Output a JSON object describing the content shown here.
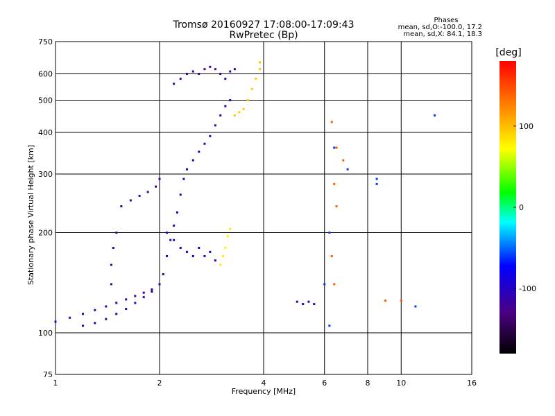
{
  "chart_data": {
    "type": "scatter",
    "title": "Tromsø 20160927 17:08:00-17:09:43",
    "subtitle": "RwPretec (Bp)",
    "xlabel": "Frequency [MHz]",
    "ylabel": "Stationary phase Virtual Height [km]",
    "xscale": "log",
    "yscale": "log",
    "xlim": [
      1,
      16
    ],
    "ylim": [
      75,
      750
    ],
    "xticks": [
      1,
      2,
      4,
      6,
      8,
      10,
      16
    ],
    "yticks": [
      75,
      100,
      200,
      300,
      400,
      500,
      600,
      750
    ],
    "grid": true,
    "phase_stats": {
      "title": "Phases",
      "line_o": "mean, sd,O:-100.0, 17.2",
      "line_x": "mean, sd,X:  84.1, 18.3"
    },
    "colorbar": {
      "label": "[deg]",
      "range": [
        -180,
        180
      ],
      "ticks": [
        100,
        0,
        -100
      ],
      "colors": [
        "#000000",
        "#4b0082",
        "#0000ff",
        "#00ffff",
        "#00ff00",
        "#ffff00",
        "#ff8000",
        "#ff0000"
      ]
    },
    "series": [
      {
        "phase": -110,
        "points": [
          [
            1.0,
            108
          ],
          [
            1.1,
            111
          ],
          [
            1.2,
            114
          ],
          [
            1.3,
            117
          ],
          [
            1.4,
            120
          ],
          [
            1.5,
            123
          ],
          [
            1.6,
            126
          ],
          [
            1.7,
            129
          ],
          [
            1.8,
            132
          ],
          [
            1.9,
            135
          ],
          [
            2.0,
            140
          ],
          [
            2.05,
            150
          ],
          [
            2.1,
            170
          ],
          [
            2.15,
            190
          ],
          [
            2.2,
            210
          ],
          [
            2.25,
            230
          ],
          [
            2.3,
            260
          ],
          [
            2.35,
            290
          ],
          [
            2.4,
            310
          ],
          [
            2.5,
            330
          ],
          [
            2.6,
            350
          ],
          [
            2.7,
            370
          ],
          [
            2.8,
            390
          ],
          [
            2.9,
            420
          ],
          [
            3.0,
            450
          ],
          [
            3.1,
            480
          ],
          [
            3.2,
            500
          ]
        ]
      },
      {
        "phase": -110,
        "points": [
          [
            1.2,
            105
          ],
          [
            1.3,
            107
          ],
          [
            1.4,
            110
          ],
          [
            1.5,
            114
          ],
          [
            1.6,
            118
          ],
          [
            1.7,
            123
          ],
          [
            1.8,
            128
          ],
          [
            1.9,
            133
          ]
        ]
      },
      {
        "phase": -120,
        "points": [
          [
            1.45,
            140
          ],
          [
            1.45,
            160
          ],
          [
            1.47,
            180
          ],
          [
            1.5,
            200
          ],
          [
            1.55,
            240
          ],
          [
            1.65,
            250
          ],
          [
            1.75,
            258
          ],
          [
            1.85,
            265
          ],
          [
            1.95,
            275
          ],
          [
            2.0,
            290
          ]
        ]
      },
      {
        "phase": -100,
        "points": [
          [
            2.1,
            200
          ],
          [
            2.2,
            190
          ],
          [
            2.3,
            180
          ],
          [
            2.4,
            175
          ],
          [
            2.5,
            170
          ],
          [
            2.6,
            180
          ],
          [
            2.7,
            170
          ],
          [
            2.8,
            175
          ],
          [
            2.9,
            165
          ]
        ]
      },
      {
        "phase": -120,
        "points": [
          [
            2.2,
            560
          ],
          [
            2.3,
            580
          ],
          [
            2.4,
            600
          ],
          [
            2.5,
            610
          ],
          [
            2.6,
            600
          ],
          [
            2.7,
            620
          ],
          [
            2.8,
            630
          ],
          [
            2.9,
            620
          ],
          [
            3.0,
            600
          ],
          [
            3.1,
            580
          ],
          [
            3.2,
            610
          ],
          [
            3.3,
            620
          ]
        ]
      },
      {
        "phase": 95,
        "points": [
          [
            3.3,
            450
          ],
          [
            3.4,
            460
          ],
          [
            3.5,
            470
          ],
          [
            3.6,
            500
          ],
          [
            3.7,
            540
          ],
          [
            3.8,
            580
          ],
          [
            3.9,
            620
          ],
          [
            3.9,
            650
          ]
        ]
      },
      {
        "phase": 80,
        "points": [
          [
            3.0,
            160
          ],
          [
            3.05,
            170
          ],
          [
            3.1,
            180
          ],
          [
            3.15,
            195
          ],
          [
            3.2,
            205
          ]
        ]
      },
      {
        "phase": -100,
        "points": [
          [
            5.0,
            124
          ],
          [
            5.2,
            122
          ],
          [
            5.4,
            124
          ],
          [
            5.6,
            122
          ]
        ]
      },
      {
        "phase": 140,
        "points": [
          [
            6.3,
            430
          ],
          [
            6.5,
            360
          ],
          [
            6.8,
            330
          ],
          [
            6.4,
            280
          ],
          [
            6.5,
            240
          ],
          [
            6.3,
            170
          ],
          [
            6.4,
            140
          ],
          [
            9.0,
            125
          ],
          [
            10.0,
            125
          ]
        ]
      },
      {
        "phase": -60,
        "points": [
          [
            6.4,
            360
          ],
          [
            7.0,
            310
          ],
          [
            8.5,
            290
          ],
          [
            8.5,
            280
          ],
          [
            6.2,
            200
          ],
          [
            6.0,
            140
          ],
          [
            11.0,
            120
          ],
          [
            12.5,
            450
          ],
          [
            6.2,
            105
          ]
        ]
      }
    ]
  }
}
